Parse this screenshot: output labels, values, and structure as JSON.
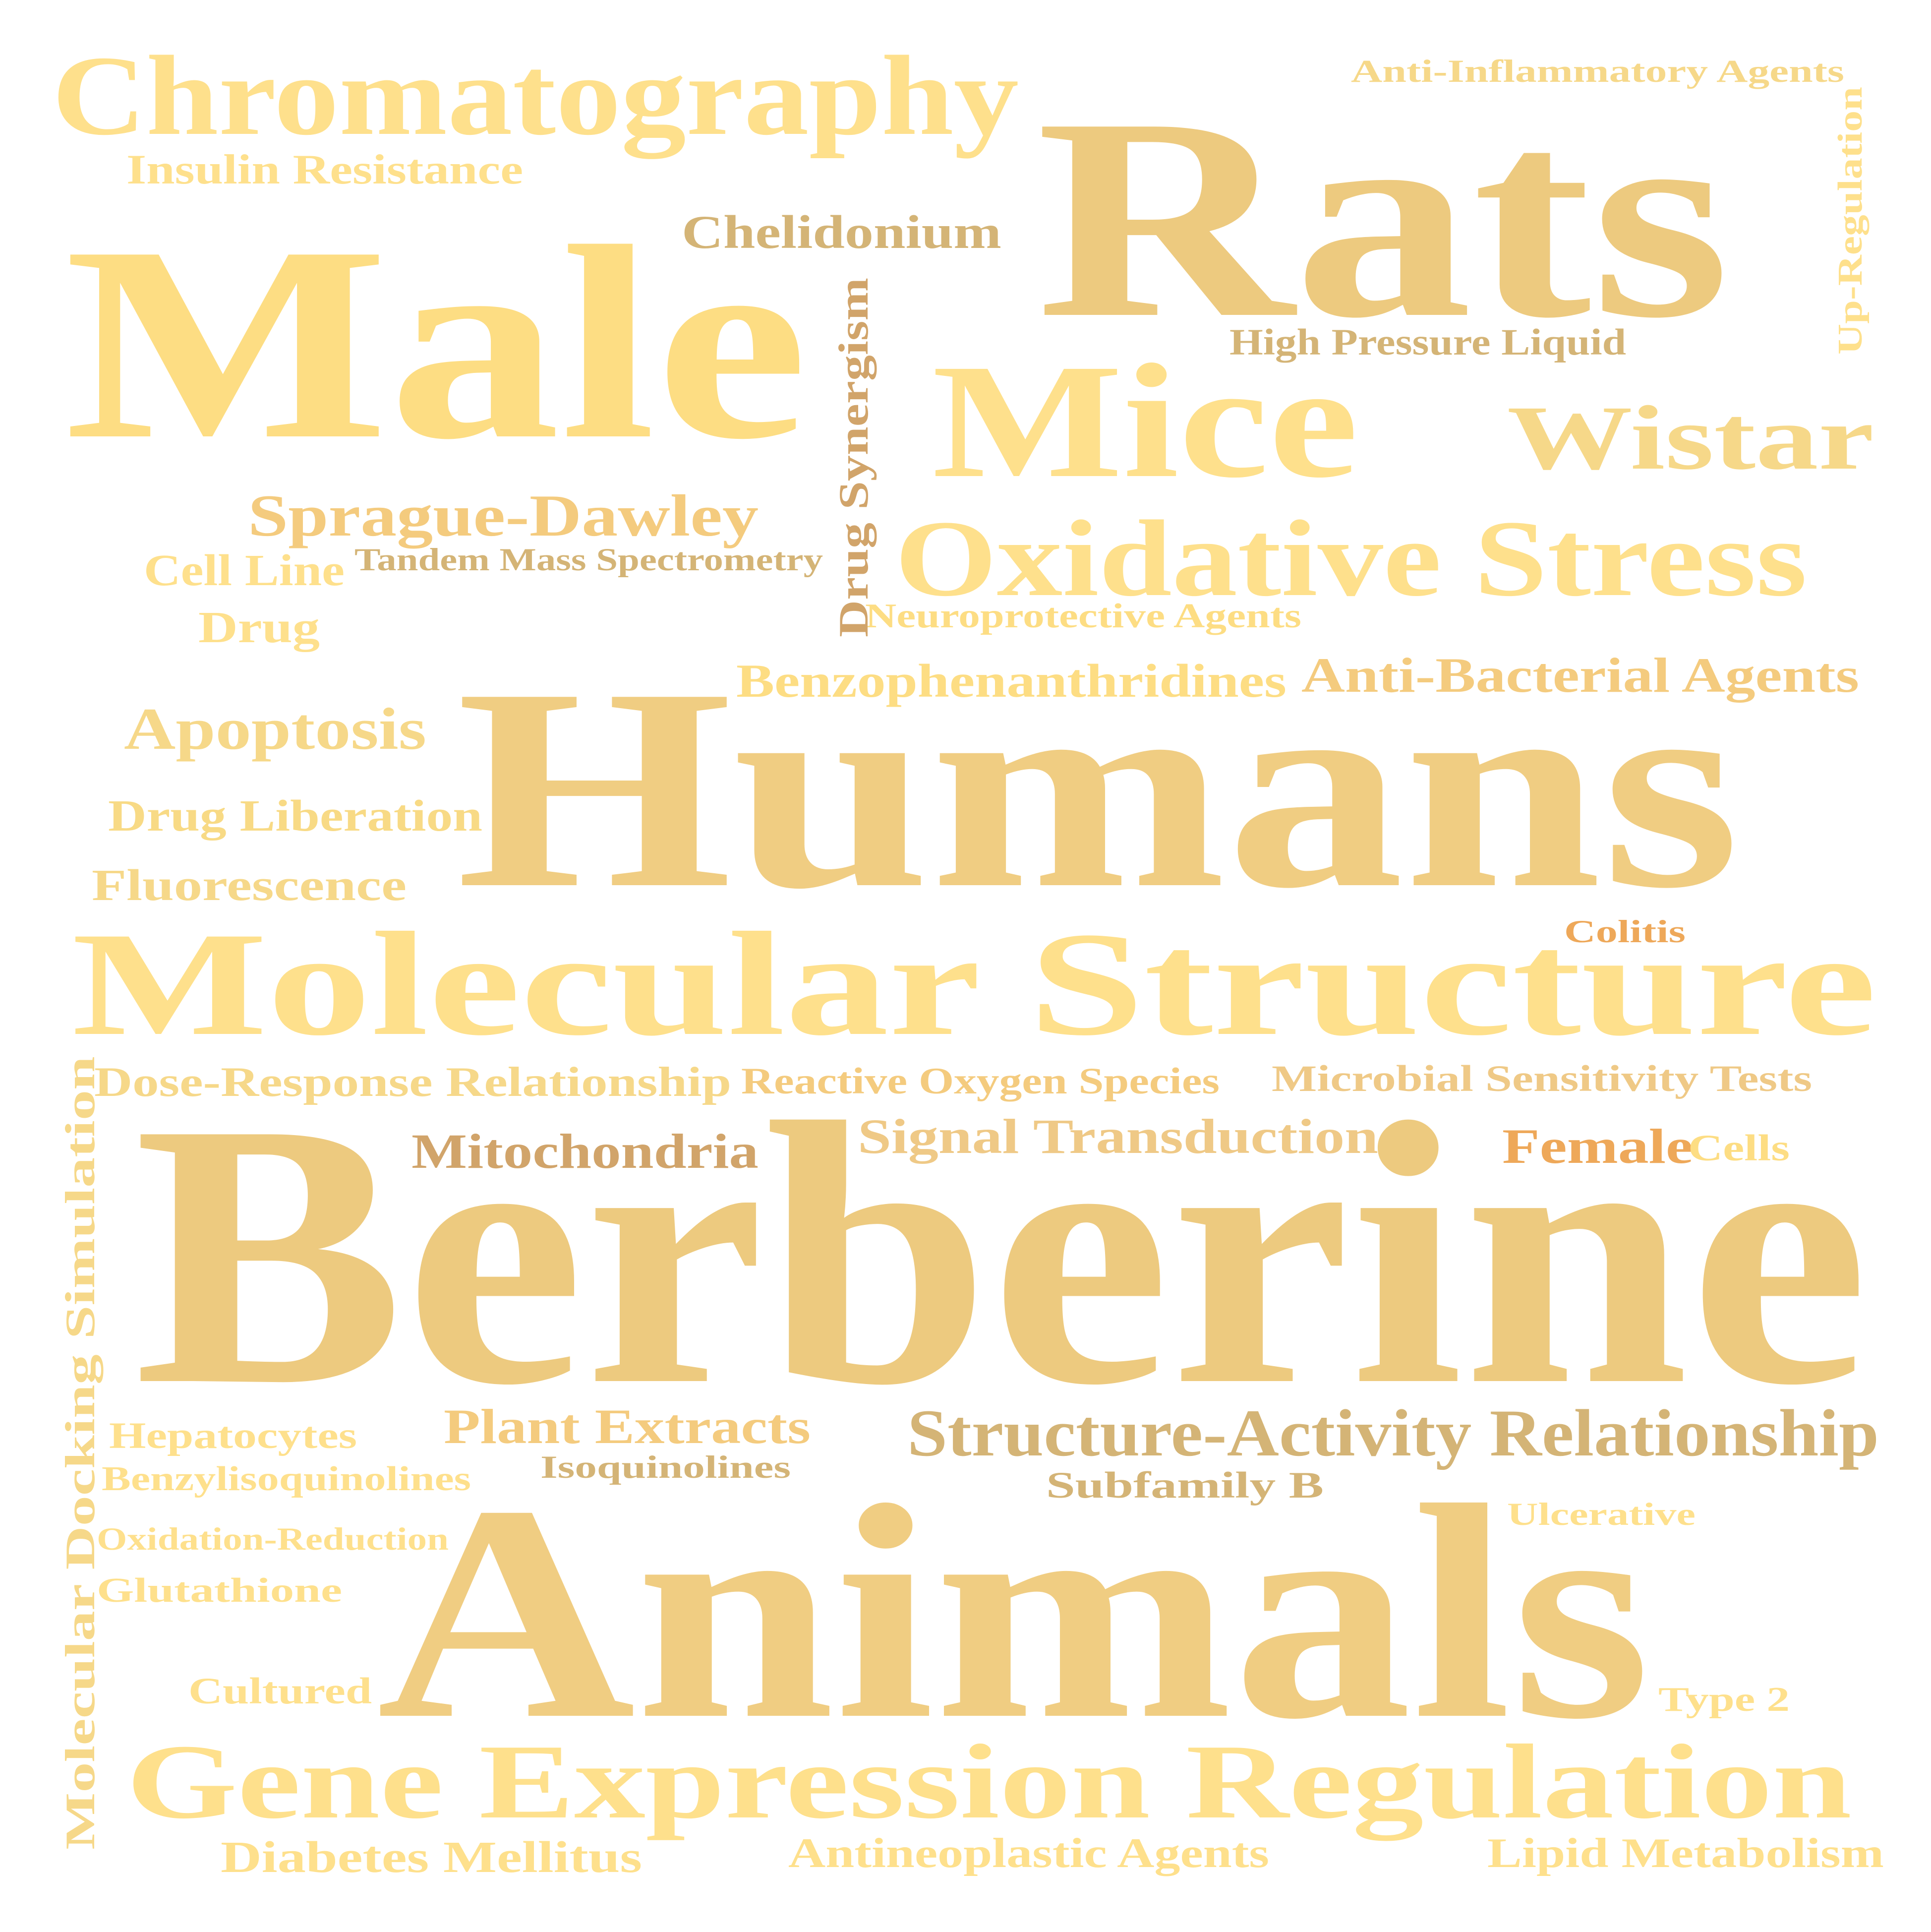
{
  "palette": {
    "light_yellow": "#FEE08C",
    "pale_yellow": "#FDDD83",
    "sand": "#F0CD82",
    "tan": "#EDCA7F",
    "khaki": "#D4B476",
    "brown_tan": "#D1A46A",
    "orange": "#EEA859",
    "peach": "#F4CB7E",
    "wheat": "#F6D889",
    "straw": "#F8DA85",
    "light_tan": "#EFC986"
  },
  "words": [
    {
      "id": "berberine",
      "text": "Berberine",
      "color": "#EDCA7F"
    },
    {
      "id": "animals",
      "text": "Animals",
      "color": "#F0CD82"
    },
    {
      "id": "humans",
      "text": "Humans",
      "color": "#F0CD82"
    },
    {
      "id": "rats",
      "text": "Rats",
      "color": "#EDCA7F"
    },
    {
      "id": "male",
      "text": "Male",
      "color": "#FDDD83"
    },
    {
      "id": "molecular-structure",
      "text": "Molecular Structure",
      "color": "#FEE08C"
    },
    {
      "id": "gene-expression-regulation",
      "text": "Gene Expression Regulation",
      "color": "#FEE08C"
    },
    {
      "id": "mice",
      "text": "Mice",
      "color": "#FEE08C"
    },
    {
      "id": "chromatography",
      "text": "Chromatography",
      "color": "#FEE08C"
    },
    {
      "id": "oxidative-stress",
      "text": "Oxidative Stress",
      "color": "#FEE08C"
    },
    {
      "id": "wistar",
      "text": "Wistar",
      "color": "#F6D889"
    },
    {
      "id": "sprague-dawley",
      "text": "Sprague-Dawley",
      "color": "#F4CB7E"
    },
    {
      "id": "structure-activity-relationship",
      "text": "Structure-Activity Relationship",
      "color": "#D4B476"
    },
    {
      "id": "apoptosis",
      "text": "Apoptosis",
      "color": "#F6D889"
    },
    {
      "id": "anti-bacterial-agents",
      "text": "Anti-Bacterial Agents",
      "color": "#F4CB7E"
    },
    {
      "id": "benzophenanthridines",
      "text": "Benzophenanthridines",
      "color": "#FDDD83"
    },
    {
      "id": "signal-transduction",
      "text": "Signal Transduction",
      "color": "#EFC986"
    },
    {
      "id": "mitochondria",
      "text": "Mitochondria",
      "color": "#D1A46A"
    },
    {
      "id": "plant-extracts",
      "text": "Plant Extracts",
      "color": "#F4CB7E"
    },
    {
      "id": "chelidonium",
      "text": "Chelidonium",
      "color": "#D4B476"
    },
    {
      "id": "drug-liberation",
      "text": "Drug Liberation",
      "color": "#F8DA85"
    },
    {
      "id": "fluorescence",
      "text": "Fluorescence",
      "color": "#F6D889"
    },
    {
      "id": "dose-response-relationship",
      "text": "Dose-Response Relationship",
      "color": "#F6D889"
    },
    {
      "id": "reactive-oxygen-species",
      "text": "Reactive Oxygen Species",
      "color": "#F4CB7E"
    },
    {
      "id": "microbial-sensitivity-tests",
      "text": "Microbial Sensitivity Tests",
      "color": "#EFC986"
    },
    {
      "id": "female",
      "text": "Female",
      "color": "#EEA859"
    },
    {
      "id": "cells",
      "text": "Cells",
      "color": "#FDDD83"
    },
    {
      "id": "insulin-resistance",
      "text": "Insulin Resistance",
      "color": "#FEE08C"
    },
    {
      "id": "cell-line",
      "text": "Cell Line",
      "color": "#FEE08C"
    },
    {
      "id": "drug",
      "text": "Drug",
      "color": "#FEE08C"
    },
    {
      "id": "tandem-mass-spectrometry",
      "text": "Tandem Mass Spectrometry",
      "color": "#D4B476"
    },
    {
      "id": "neuroprotective-agents",
      "text": "Neuroprotective Agents",
      "color": "#FDDD83"
    },
    {
      "id": "high-pressure-liquid",
      "text": "High Pressure Liquid",
      "color": "#D4B476"
    },
    {
      "id": "anti-inflammatory-agents",
      "text": "Anti-Inflammatory Agents",
      "color": "#F6D889"
    },
    {
      "id": "colitis",
      "text": "Colitis",
      "color": "#EEA859"
    },
    {
      "id": "hepatocytes",
      "text": "Hepatocytes",
      "color": "#FEE08C"
    },
    {
      "id": "benzylisoquinolines",
      "text": "Benzylisoquinolines",
      "color": "#FEE08C"
    },
    {
      "id": "isoquinolines",
      "text": "Isoquinolines",
      "color": "#D4B476"
    },
    {
      "id": "subfamily-b",
      "text": "Subfamily B",
      "color": "#D4B476"
    },
    {
      "id": "ulcerative",
      "text": "Ulcerative",
      "color": "#FEE08C"
    },
    {
      "id": "oxidation-reduction",
      "text": "Oxidation-Reduction",
      "color": "#FEE08C"
    },
    {
      "id": "glutathione",
      "text": "Glutathione",
      "color": "#FEE08C"
    },
    {
      "id": "cultured",
      "text": "Cultured",
      "color": "#FEE08C"
    },
    {
      "id": "type-2",
      "text": "Type 2",
      "color": "#FEE08C"
    },
    {
      "id": "diabetes-mellitus",
      "text": "Diabetes Mellitus",
      "color": "#FEE08C"
    },
    {
      "id": "antineoplastic-agents",
      "text": "Antineoplastic Agents",
      "color": "#FEE08C"
    },
    {
      "id": "lipid-metabolism",
      "text": "Lipid Metabolism",
      "color": "#FEE08C"
    },
    {
      "id": "up-regulation",
      "text": "Up-Regulation",
      "color": "#FEE08C"
    },
    {
      "id": "drug-synergism",
      "text": "Drug Synergism",
      "color": "#D1A46A"
    },
    {
      "id": "molecular-docking-simulation",
      "text": "Molecular Docking Simulation",
      "color": "#F6D889"
    }
  ]
}
